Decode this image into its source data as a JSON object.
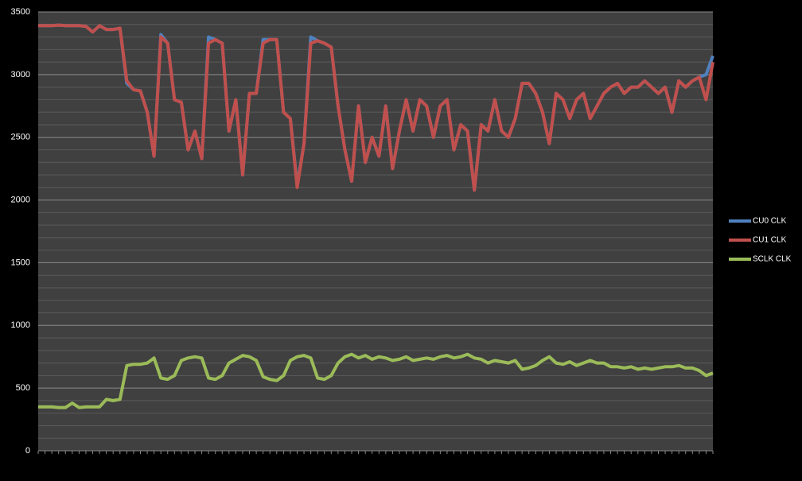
{
  "chart_data": {
    "type": "line",
    "categories": [
      null,
      null,
      null,
      null,
      null,
      null,
      null,
      null,
      null,
      null,
      null,
      null,
      null,
      null,
      null,
      null,
      null,
      null,
      null,
      null,
      null,
      null,
      null,
      null,
      null,
      null,
      null,
      null,
      null,
      null,
      null,
      null,
      null,
      null,
      null,
      null,
      null,
      null,
      null,
      null,
      null,
      null,
      null,
      null,
      null,
      null,
      null,
      null,
      null,
      null,
      null,
      null,
      null,
      null,
      null,
      null,
      null,
      null,
      null,
      null,
      null,
      null,
      null,
      null,
      null,
      null,
      null,
      null,
      null,
      null,
      null,
      null,
      null,
      null,
      null,
      null,
      null,
      null,
      null,
      null,
      null,
      null,
      null,
      null,
      null,
      null,
      null,
      null,
      null,
      null,
      null,
      null,
      null,
      null,
      null,
      null,
      null,
      null,
      null,
      null
    ],
    "series": [
      {
        "name": "CU0 CLK",
        "color": "#4f81bd",
        "values": [
          3390,
          3390,
          3390,
          3395,
          3390,
          3390,
          3390,
          3385,
          3340,
          3390,
          3360,
          3360,
          3370,
          2930,
          2880,
          2870,
          2700,
          2350,
          3320,
          3250,
          2800,
          2780,
          2400,
          2550,
          2330,
          3300,
          3280,
          3250,
          2550,
          2800,
          2200,
          2850,
          2850,
          3280,
          3280,
          3280,
          2700,
          2650,
          2120,
          2450,
          3300,
          3270,
          3250,
          3220,
          2750,
          2400,
          2150,
          2750,
          2300,
          2500,
          2350,
          2750,
          2250,
          2550,
          2800,
          2550,
          2800,
          2750,
          2500,
          2750,
          2800,
          2400,
          2600,
          2550,
          2080,
          2600,
          2550,
          2800,
          2550,
          2500,
          2650,
          2930,
          2930,
          2850,
          2700,
          2450,
          2850,
          2800,
          2650,
          2800,
          2850,
          2650,
          2750,
          2850,
          2900,
          2930,
          2850,
          2900,
          2900,
          2950,
          2900,
          2850,
          2900,
          2700,
          2950,
          2900,
          2950,
          2980,
          3000,
          3150
        ]
      },
      {
        "name": "CU1 CLK",
        "color": "#c0504d",
        "values": [
          3390,
          3390,
          3390,
          3395,
          3390,
          3390,
          3390,
          3385,
          3340,
          3390,
          3360,
          3360,
          3370,
          2950,
          2880,
          2870,
          2700,
          2350,
          3300,
          3250,
          2800,
          2780,
          2400,
          2550,
          2330,
          3250,
          3280,
          3250,
          2550,
          2800,
          2200,
          2850,
          2850,
          3250,
          3280,
          3280,
          2700,
          2650,
          2100,
          2450,
          3250,
          3270,
          3250,
          3220,
          2750,
          2400,
          2150,
          2750,
          2300,
          2500,
          2350,
          2750,
          2250,
          2550,
          2800,
          2550,
          2800,
          2750,
          2500,
          2750,
          2800,
          2400,
          2600,
          2550,
          2080,
          2600,
          2550,
          2800,
          2550,
          2500,
          2650,
          2930,
          2930,
          2850,
          2700,
          2450,
          2850,
          2800,
          2650,
          2800,
          2850,
          2650,
          2750,
          2850,
          2900,
          2930,
          2850,
          2900,
          2900,
          2950,
          2900,
          2850,
          2900,
          2700,
          2950,
          2900,
          2950,
          2980,
          2800,
          3100
        ]
      },
      {
        "name": "SCLK CLK",
        "color": "#9bbb59",
        "values": [
          350,
          350,
          350,
          345,
          345,
          380,
          345,
          350,
          350,
          350,
          410,
          400,
          410,
          680,
          690,
          690,
          700,
          740,
          580,
          570,
          600,
          720,
          740,
          750,
          740,
          580,
          570,
          600,
          700,
          730,
          760,
          750,
          720,
          590,
          570,
          560,
          600,
          720,
          750,
          760,
          740,
          580,
          570,
          600,
          700,
          750,
          770,
          740,
          760,
          730,
          750,
          740,
          720,
          730,
          750,
          720,
          730,
          740,
          730,
          750,
          760,
          740,
          750,
          770,
          740,
          730,
          700,
          720,
          710,
          700,
          720,
          650,
          660,
          680,
          720,
          750,
          700,
          690,
          710,
          680,
          700,
          720,
          700,
          700,
          670,
          670,
          660,
          670,
          650,
          660,
          650,
          660,
          670,
          670,
          680,
          660,
          660,
          640,
          600,
          620
        ]
      }
    ],
    "ylim": [
      0,
      3500
    ],
    "yticks": [
      0,
      500,
      1000,
      1500,
      2000,
      2500,
      3000,
      3500
    ],
    "grid": true,
    "legend": "right"
  }
}
